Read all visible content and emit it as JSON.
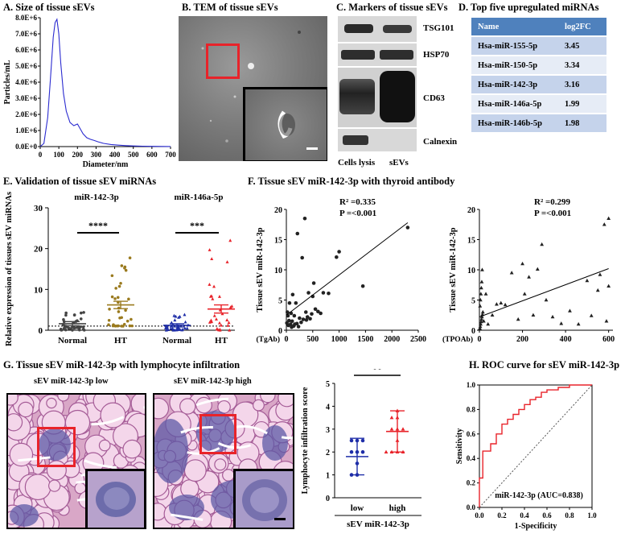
{
  "panels": {
    "a": {
      "title": "A. Size of tissue sEVs"
    },
    "b": {
      "title": "B. TEM of tissue sEVs"
    },
    "c": {
      "title": "C. Markers of tissue sEVs"
    },
    "d": {
      "title": "D. Top five upregulated miRNAs"
    },
    "e": {
      "title": "E. Validation of  tissue sEV miRNAs"
    },
    "f": {
      "title": "F. Tissue sEV miR-142-3p with thyroid antibody"
    },
    "g": {
      "title": "G. Tissue sEV miR-142-3p with lymphocyte infiltration"
    },
    "h": {
      "title": "H. ROC curve for sEV miR-142-3p"
    }
  },
  "western_blot": {
    "markers": [
      "TSG101",
      "HSP70",
      "CD63",
      "Calnexin"
    ],
    "lanes": [
      "Cells lysis",
      "sEVs"
    ]
  },
  "mirna_table": {
    "headers": [
      "Name",
      "log2FC"
    ],
    "rows": [
      [
        "Hsa-miR-155-5p",
        "3.45"
      ],
      [
        "Hsa-miR-150-5p",
        "3.34"
      ],
      [
        "Hsa-miR-142-3p",
        "3.16"
      ],
      [
        "Hsa-miR-146a-5p",
        "1.99"
      ],
      [
        "Hsa-miR-146b-5p",
        "1.98"
      ]
    ]
  },
  "histology": {
    "low_label": "sEV miR-142-3p low",
    "high_label": "sEV miR-142-3p high"
  },
  "colors": {
    "nta_line": "#2b2bd0",
    "red": "#e8232a",
    "brown": "#9a7a1e",
    "blue": "#1f2ea8",
    "table_head": "#4f81bd",
    "table_row1": "#c5d3eb",
    "table_row2": "#e6ecf6"
  },
  "chart_data": [
    {
      "id": "A",
      "type": "line",
      "xlabel": "Diameter/nm",
      "ylabel": "Particles/mL",
      "xlim": [
        0,
        700
      ],
      "ylim": [
        0,
        8000000
      ],
      "xticks": [
        "0",
        "100",
        "200",
        "300",
        "400",
        "500",
        "600",
        "700"
      ],
      "yticks": [
        "0.0E+0",
        "1.0E+6",
        "2.0E+6",
        "3.0E+6",
        "4.0E+6",
        "5.0E+6",
        "6.0E+6",
        "7.0E+6",
        "8.0E+6"
      ],
      "x": [
        0,
        20,
        40,
        55,
        70,
        80,
        90,
        100,
        110,
        125,
        140,
        160,
        180,
        200,
        215,
        230,
        250,
        270,
        290,
        310,
        340,
        380,
        420,
        460,
        500,
        550,
        600,
        650,
        700
      ],
      "y": [
        0,
        200000,
        1800000,
        4200000,
        6800000,
        7700000,
        7900000,
        7000000,
        5200000,
        3300000,
        2200000,
        1500000,
        1300000,
        1400000,
        1100000,
        800000,
        550000,
        450000,
        380000,
        300000,
        200000,
        130000,
        90000,
        60000,
        40000,
        25000,
        15000,
        8000,
        5000
      ]
    },
    {
      "id": "E",
      "type": "scatter",
      "ylabel": "Relative expression of tissues sEV miRNAs",
      "ylim": [
        0,
        30
      ],
      "yticks": [
        "0",
        "10",
        "20",
        "30"
      ],
      "reference_line": 1,
      "groups": [
        {
          "label": "Normal",
          "gene": "miR-142-3p",
          "mean": 1.6,
          "sem": 0.5,
          "color": "#444444"
        },
        {
          "label": "HT",
          "gene": "miR-142-3p",
          "mean": 6.2,
          "sem": 0.9,
          "color": "#9a7a1e"
        },
        {
          "label": "Normal",
          "gene": "miR-146a-5p",
          "mean": 1.2,
          "sem": 0.4,
          "color": "#1f2ea8"
        },
        {
          "label": "HT",
          "gene": "miR-146a-5p",
          "mean": 5.2,
          "sem": 1.0,
          "color": "#e8232a"
        }
      ],
      "gene_labels": [
        "miR-142-3p",
        "miR-146a-5p"
      ],
      "significance": [
        "****",
        "***"
      ]
    },
    {
      "id": "F1",
      "type": "scatter",
      "ylabel": "Tissue sEV miR-142-3p",
      "xlabel": "(TgAb)",
      "xlim": [
        0,
        2500
      ],
      "ylim": [
        0,
        20
      ],
      "xticks": [
        "0",
        "500",
        "1000",
        "1500",
        "2000",
        "2500"
      ],
      "yticks": [
        "0",
        "5",
        "10",
        "15",
        "20"
      ],
      "r2": "R² =0.335",
      "p": "P =<0.001",
      "fit": {
        "x0": 0,
        "y0": 2.5,
        "x1": 2300,
        "y1": 17.8
      },
      "x": [
        10,
        20,
        30,
        40,
        50,
        60,
        80,
        90,
        100,
        110,
        120,
        140,
        150,
        160,
        180,
        200,
        210,
        230,
        250,
        280,
        300,
        320,
        350,
        370,
        380,
        400,
        420,
        450,
        480,
        500,
        520,
        550,
        600,
        650,
        700,
        800,
        950,
        1450,
        1000,
        2300
      ],
      "y": [
        1.2,
        3,
        2.4,
        0.8,
        1.6,
        4.5,
        1,
        2.8,
        0.5,
        1.5,
        5.9,
        0.7,
        2.4,
        1,
        4.5,
        1.1,
        16,
        0.6,
        2,
        1.3,
        12,
        1.8,
        18.5,
        3,
        1.7,
        2.2,
        6.2,
        1.9,
        2.7,
        5.6,
        7.8,
        3.5,
        3.1,
        2.8,
        6.2,
        6.1,
        12.1,
        7.3,
        13,
        17
      ]
    },
    {
      "id": "F2",
      "type": "scatter",
      "ylabel": "Tissue sEV miR-142-3p",
      "xlabel": "(TPOAb)",
      "xlim": [
        0,
        620
      ],
      "ylim": [
        0,
        20
      ],
      "xticks": [
        "0",
        "200",
        "400",
        "600"
      ],
      "yticks": [
        "0",
        "5",
        "10",
        "15",
        "20"
      ],
      "r2": "R² =0.299",
      "p": "P =<0.001",
      "fit": {
        "x0": 0,
        "y0": 2.2,
        "x1": 600,
        "y1": 10.2
      },
      "x": [
        2,
        4,
        6,
        8,
        10,
        12,
        14,
        16,
        3,
        5,
        7,
        9,
        11,
        13,
        20,
        30,
        40,
        60,
        80,
        100,
        120,
        150,
        180,
        200,
        210,
        230,
        250,
        270,
        290,
        310,
        340,
        380,
        420,
        460,
        500,
        550,
        560,
        580,
        600,
        600,
        590,
        520
      ],
      "y": [
        0.3,
        0.6,
        1,
        1.4,
        1.8,
        2.2,
        2.6,
        3,
        4,
        5,
        6,
        7,
        8,
        10,
        1.5,
        6,
        1,
        2.5,
        4.3,
        4.5,
        4.2,
        9.5,
        1.8,
        11,
        6,
        8.8,
        2.5,
        10.1,
        14.2,
        5,
        2.2,
        1.1,
        3.2,
        1,
        8.2,
        6.6,
        9.2,
        17.5,
        18.5,
        7.3,
        1.5,
        2.4
      ]
    },
    {
      "id": "G",
      "type": "scatter",
      "ylabel": "Lymphocyte infiltration score",
      "xlabel": "sEV miR-142-3p",
      "categories": [
        "low",
        "high"
      ],
      "ylim": [
        0,
        5
      ],
      "yticks": [
        "0",
        "1",
        "2",
        "3",
        "4",
        "5"
      ],
      "low": [
        1,
        1,
        1.5,
        2,
        2,
        2,
        2.5,
        2.5,
        2.5
      ],
      "high": [
        2,
        2,
        2,
        2,
        2.5,
        3,
        3,
        3,
        3.5,
        3.5,
        3.8
      ],
      "means": [
        1.8,
        2.9
      ],
      "sds": [
        0.8,
        0.9
      ],
      "colors": [
        "#1f2ea8",
        "#e8232a"
      ],
      "significance": "**"
    },
    {
      "id": "H",
      "type": "line",
      "xlabel": "1-Specificity",
      "ylabel": "Sensitivity",
      "xlim": [
        0,
        1
      ],
      "ylim": [
        0,
        1
      ],
      "xticks": [
        "0.0",
        "0.2",
        "0.4",
        "0.6",
        "0.8",
        "1.0"
      ],
      "yticks": [
        "0.0",
        "0.2",
        "0.4",
        "0.6",
        "0.8",
        "1.0"
      ],
      "label": "miR-142-3p (AUC=0.838)",
      "x": [
        0,
        0,
        0.03,
        0.03,
        0.1,
        0.1,
        0.15,
        0.15,
        0.2,
        0.2,
        0.25,
        0.25,
        0.3,
        0.3,
        0.35,
        0.35,
        0.4,
        0.4,
        0.45,
        0.45,
        0.5,
        0.5,
        0.55,
        0.55,
        0.6,
        0.6,
        0.7,
        0.7,
        0.8,
        0.8,
        1.0
      ],
      "y": [
        0,
        0.24,
        0.24,
        0.46,
        0.46,
        0.52,
        0.52,
        0.6,
        0.6,
        0.68,
        0.68,
        0.72,
        0.72,
        0.76,
        0.76,
        0.8,
        0.8,
        0.84,
        0.84,
        0.88,
        0.88,
        0.9,
        0.9,
        0.94,
        0.94,
        0.96,
        0.96,
        0.98,
        0.98,
        1.0,
        1.0
      ]
    }
  ]
}
